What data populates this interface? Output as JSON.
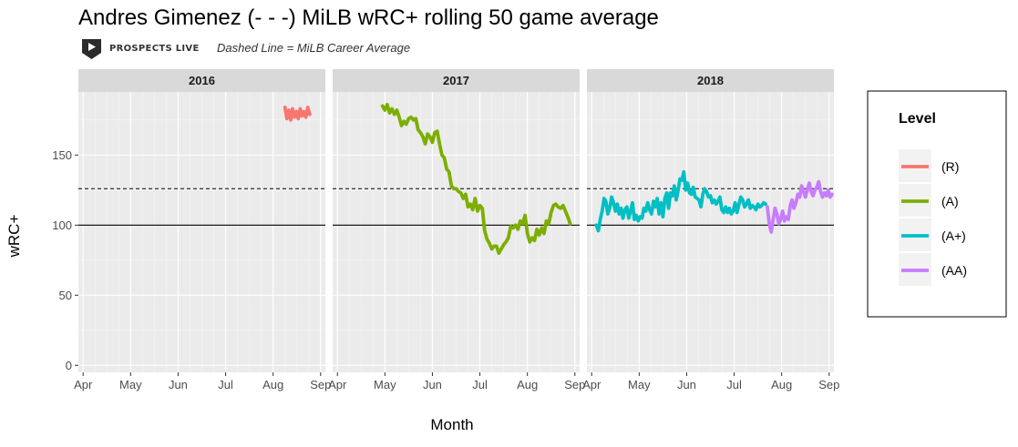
{
  "header": {
    "title": "Andres Gimenez (- - -) MiLB wRC+ rolling 50 game average",
    "brand": "PROSPECTS LIVE",
    "note": "Dashed Line = MiLB Career Average"
  },
  "chart_data": {
    "type": "line",
    "xlabel": "Month",
    "ylabel": "wRC+",
    "ylim": [
      -5,
      195
    ],
    "yticks": [
      0,
      50,
      100,
      150
    ],
    "xticks": [
      "Apr",
      "May",
      "Jun",
      "Jul",
      "Aug",
      "Sep"
    ],
    "xrange_months": [
      3.9,
      9.1
    ],
    "grid": true,
    "reference_lines": [
      {
        "value": 100,
        "style": "solid"
      },
      {
        "value": 126,
        "style": "dashed"
      }
    ],
    "legend": {
      "title": "Level",
      "position": "right",
      "entries": [
        {
          "label": "(R)",
          "color": "#F8766D"
        },
        {
          "label": "(A)",
          "color": "#7CAE00"
        },
        {
          "label": "(A+)",
          "color": "#00BFC4"
        },
        {
          "label": "(AA)",
          "color": "#C77CFF"
        }
      ]
    },
    "panels": [
      {
        "label": "2016",
        "series": [
          {
            "level": "(R)",
            "x": [
              8.25,
              8.29,
              8.33,
              8.37,
              8.41,
              8.45,
              8.49,
              8.53,
              8.57,
              8.61,
              8.65,
              8.69,
              8.73,
              8.77
            ],
            "y": [
              184,
              176,
              182,
              175,
              183,
              177,
              181,
              176,
              183,
              178,
              181,
              177,
              184,
              179
            ]
          }
        ]
      },
      {
        "label": "2017",
        "series": [
          {
            "level": "(A)",
            "x": [
              4.95,
              5.0,
              5.05,
              5.1,
              5.15,
              5.2,
              5.25,
              5.3,
              5.35,
              5.4,
              5.45,
              5.5,
              5.55,
              5.6,
              5.65,
              5.7,
              5.75,
              5.8,
              5.85,
              5.9,
              5.95,
              6.0,
              6.05,
              6.1,
              6.15,
              6.2,
              6.25,
              6.3,
              6.35,
              6.4,
              6.45,
              6.5,
              6.55,
              6.6,
              6.65,
              6.7,
              6.75,
              6.8,
              6.85,
              6.9,
              6.95,
              7.0,
              7.05,
              7.1,
              7.15,
              7.2,
              7.25,
              7.3,
              7.35,
              7.4,
              7.45,
              7.5,
              7.55,
              7.6,
              7.65,
              7.7,
              7.75,
              7.8,
              7.85,
              7.9,
              7.95,
              8.0,
              8.05,
              8.1,
              8.15,
              8.2,
              8.25,
              8.3,
              8.35,
              8.4,
              8.45,
              8.5,
              8.55,
              8.6,
              8.65,
              8.7,
              8.75,
              8.8,
              8.85,
              8.9
            ],
            "y": [
              185,
              182,
              186,
              180,
              183,
              179,
              182,
              177,
              171,
              174,
              172,
              176,
              177,
              175,
              176,
              168,
              166,
              163,
              158,
              165,
              163,
              159,
              166,
              167,
              158,
              150,
              148,
              140,
              138,
              128,
              126,
              126,
              124,
              123,
              119,
              122,
              113,
              115,
              111,
              119,
              110,
              114,
              112,
              96,
              90,
              87,
              83,
              85,
              85,
              80,
              83,
              86,
              88,
              91,
              99,
              98,
              100,
              97,
              103,
              101,
              107,
              94,
              88,
              91,
              89,
              97,
              93,
              98,
              94,
              103,
              101,
              109,
              114,
              115,
              113,
              112,
              114,
              110,
              106,
              101
            ]
          }
        ]
      },
      {
        "label": "2018",
        "series": [
          {
            "level": "(A+)",
            "x": [
              4.1,
              4.14,
              4.18,
              4.22,
              4.26,
              4.3,
              4.34,
              4.38,
              4.42,
              4.46,
              4.5,
              4.54,
              4.58,
              4.62,
              4.66,
              4.7,
              4.74,
              4.78,
              4.82,
              4.86,
              4.9,
              4.94,
              4.98,
              5.02,
              5.06,
              5.1,
              5.14,
              5.18,
              5.22,
              5.26,
              5.3,
              5.34,
              5.38,
              5.42,
              5.46,
              5.5,
              5.54,
              5.58,
              5.62,
              5.66,
              5.7,
              5.74,
              5.78,
              5.82,
              5.86,
              5.9,
              5.94,
              5.98,
              6.02,
              6.06,
              6.1,
              6.14,
              6.18,
              6.22,
              6.26,
              6.3,
              6.34,
              6.38,
              6.42,
              6.46,
              6.5,
              6.54,
              6.58,
              6.62,
              6.66,
              6.7,
              6.74,
              6.78,
              6.82,
              6.86,
              6.9,
              6.94,
              6.98,
              7.02,
              7.06,
              7.1,
              7.14,
              7.18,
              7.22,
              7.26,
              7.3,
              7.34,
              7.38,
              7.42,
              7.46,
              7.5,
              7.54,
              7.58,
              7.62,
              7.66
            ],
            "y": [
              100,
              96,
              104,
              110,
              119,
              117,
              108,
              112,
              120,
              116,
              110,
              115,
              108,
              112,
              105,
              111,
              113,
              105,
              110,
              116,
              104,
              107,
              103,
              106,
              105,
              112,
              110,
              116,
              111,
              108,
              117,
              113,
              119,
              108,
              116,
              106,
              119,
              123,
              112,
              123,
              121,
              128,
              118,
              125,
              133,
              132,
              138,
              125,
              130,
              123,
              122,
              127,
              120,
              119,
              118,
              113,
              122,
              126,
              124,
              120,
              121,
              116,
              118,
              115,
              117,
              120,
              111,
              109,
              113,
              109,
              112,
              108,
              110,
              116,
              109,
              115,
              120,
              118,
              113,
              115,
              118,
              112,
              114,
              113,
              111,
              115,
              113,
              114,
              116,
              115
            ]
          },
          {
            "level": "(AA)",
            "x": [
              7.7,
              7.74,
              7.78,
              7.82,
              7.86,
              7.9,
              7.94,
              7.98,
              8.02,
              8.06,
              8.1,
              8.14,
              8.18,
              8.22,
              8.26,
              8.3,
              8.34,
              8.38,
              8.42,
              8.46,
              8.5,
              8.54,
              8.58,
              8.62,
              8.66,
              8.7,
              8.74,
              8.78,
              8.82,
              8.86,
              8.9,
              8.94,
              8.98,
              9.02,
              9.06
            ],
            "y": [
              113,
              101,
              95,
              104,
              112,
              108,
              101,
              104,
              110,
              103,
              106,
              104,
              114,
              118,
              112,
              116,
              122,
              120,
              128,
              124,
              120,
              125,
              130,
              124,
              121,
              125,
              127,
              131,
              124,
              120,
              123,
              121,
              125,
              120,
              122
            ]
          }
        ]
      }
    ]
  }
}
